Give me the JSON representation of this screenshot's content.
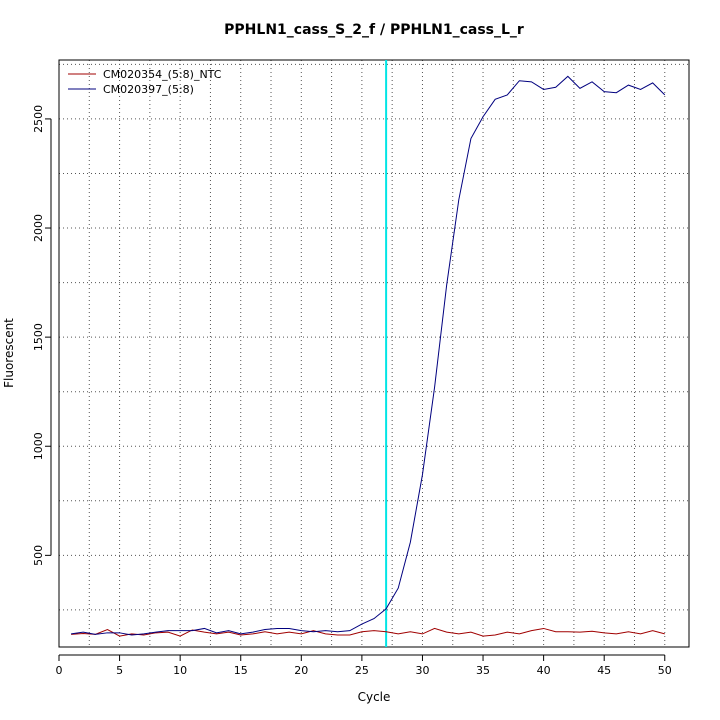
{
  "chart_data": {
    "type": "line",
    "title": "PPHLN1_cass_S_2_f / PPHLN1_cass_L_r",
    "xlabel": "Cycle",
    "ylabel": "Fluorescent",
    "xlim": [
      0,
      52
    ],
    "ylim": [
      80,
      2770
    ],
    "x_ticks": [
      0,
      5,
      10,
      15,
      20,
      25,
      30,
      35,
      40,
      45,
      50
    ],
    "y_ticks": [
      500,
      1000,
      1500,
      2000,
      2500
    ],
    "grid": true,
    "legend_position": "top-left",
    "threshold_cycle": 27,
    "threshold_color": "#00e5e5",
    "x": [
      1,
      2,
      3,
      4,
      5,
      6,
      7,
      8,
      9,
      10,
      11,
      12,
      13,
      14,
      15,
      16,
      17,
      18,
      19,
      20,
      21,
      22,
      23,
      24,
      25,
      26,
      27,
      28,
      29,
      30,
      31,
      32,
      33,
      34,
      35,
      36,
      37,
      38,
      39,
      40,
      41,
      42,
      43,
      44,
      45,
      46,
      47,
      48,
      49,
      50
    ],
    "series": [
      {
        "name": "CM020354_(5:8)_NTC",
        "color": "#a00000",
        "values": [
          138,
          142,
          138,
          160,
          130,
          140,
          135,
          145,
          148,
          130,
          158,
          148,
          140,
          148,
          135,
          140,
          150,
          140,
          148,
          140,
          155,
          140,
          135,
          135,
          150,
          155,
          150,
          140,
          150,
          140,
          165,
          148,
          140,
          148,
          130,
          135,
          148,
          140,
          155,
          165,
          150,
          150,
          148,
          152,
          145,
          140,
          150,
          140,
          155,
          140
        ]
      },
      {
        "name": "CM020397_(5:8)",
        "color": "#00007f",
        "values": [
          140,
          148,
          138,
          145,
          145,
          135,
          140,
          148,
          155,
          155,
          155,
          165,
          145,
          155,
          140,
          148,
          160,
          165,
          165,
          155,
          150,
          155,
          150,
          155,
          185,
          210,
          255,
          350,
          560,
          870,
          1270,
          1740,
          2130,
          2410,
          2510,
          2590,
          2610,
          2675,
          2670,
          2635,
          2645,
          2695,
          2640,
          2670,
          2625,
          2620,
          2655,
          2635,
          2665,
          2610
        ]
      }
    ]
  }
}
